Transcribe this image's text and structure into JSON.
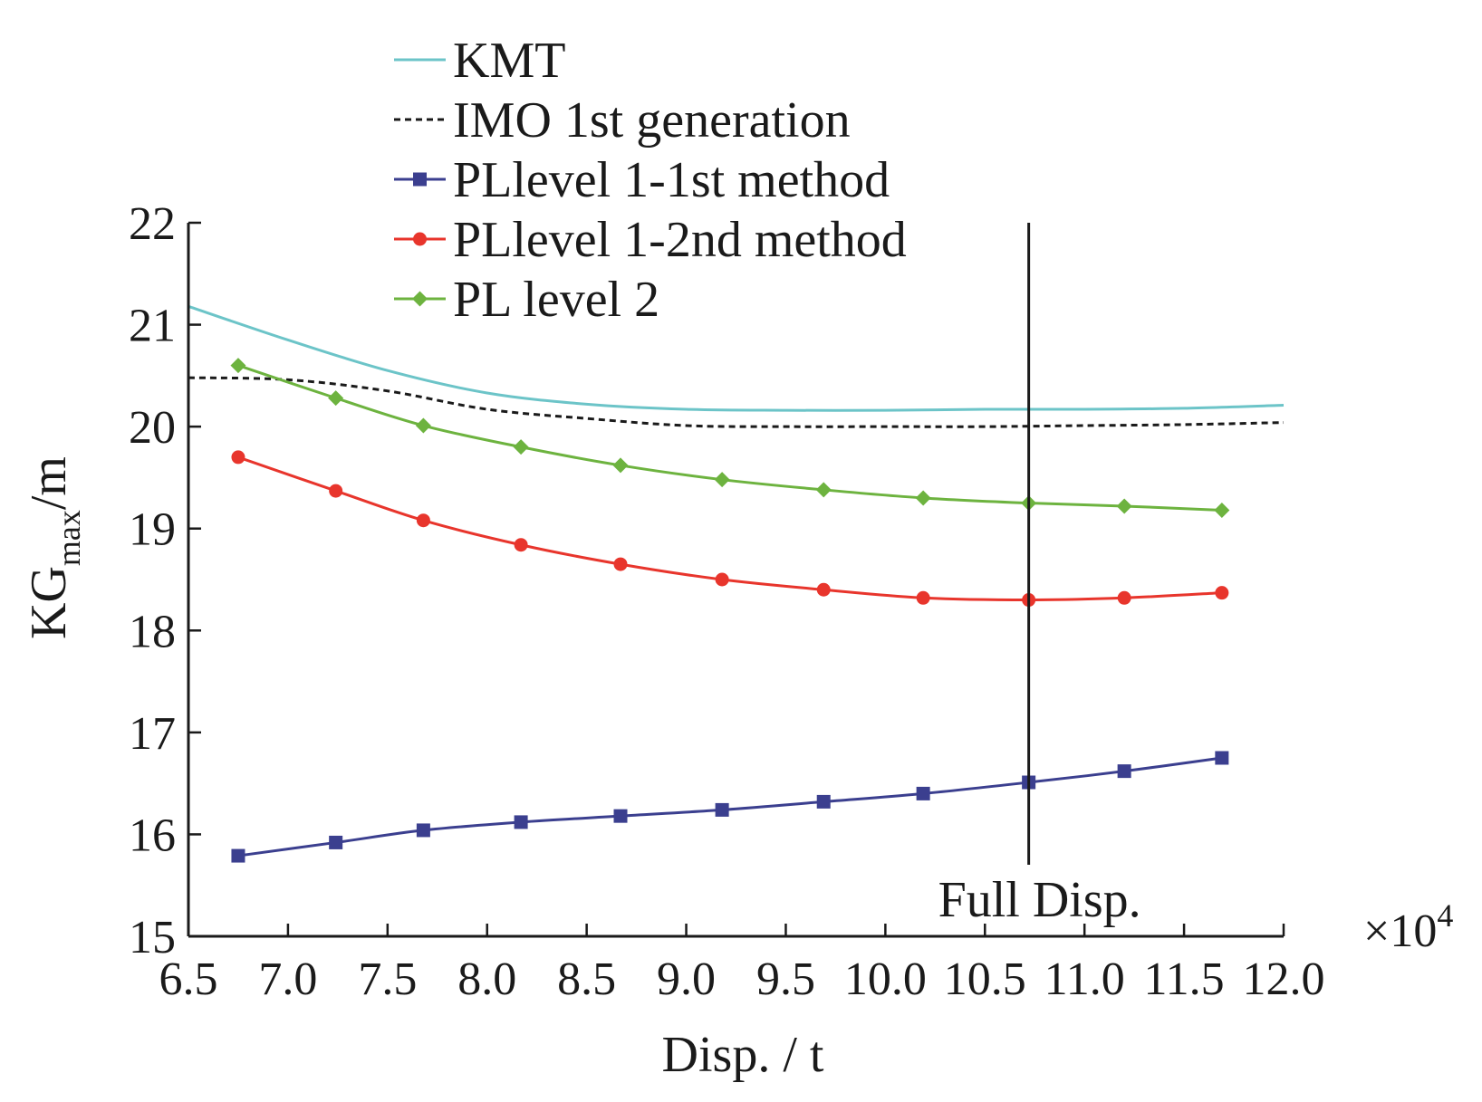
{
  "chart_data": {
    "type": "line",
    "title": "",
    "xlabel": "Disp. / t",
    "ylabel_main": "KG",
    "ylabel_sub": "max",
    "ylabel_unit": "/m",
    "x_multiplier": "×10",
    "x_multiplier_exp": "4",
    "xlim": [
      6.5,
      12.0
    ],
    "ylim": [
      15,
      22
    ],
    "xticks": [
      "6.5",
      "7.0",
      "7.5",
      "8.0",
      "8.5",
      "9.0",
      "9.5",
      "10.0",
      "10.5",
      "11.0",
      "11.5",
      "12.0"
    ],
    "yticks": [
      "15",
      "16",
      "17",
      "18",
      "19",
      "20",
      "21",
      "22"
    ],
    "legend_position": "top-center",
    "annotation": {
      "label": "Full Disp.",
      "x": 10.72
    },
    "series": [
      {
        "name": "KMT",
        "color": "#6cc4c8",
        "style": "solid",
        "marker": "none",
        "x": [
          6.5,
          7.0,
          7.5,
          8.0,
          8.5,
          9.0,
          9.5,
          10.0,
          10.5,
          11.0,
          11.5,
          12.0
        ],
        "y": [
          21.18,
          20.85,
          20.55,
          20.33,
          20.22,
          20.17,
          20.16,
          20.16,
          20.17,
          20.17,
          20.18,
          20.21
        ]
      },
      {
        "name": "IMO 1st generation",
        "color": "#1a1a1a",
        "style": "dashed",
        "marker": "none",
        "x": [
          6.5,
          7.0,
          7.5,
          8.0,
          8.5,
          9.0,
          9.5,
          10.0,
          10.5,
          11.0,
          11.5,
          12.0
        ],
        "y": [
          20.48,
          20.46,
          20.35,
          20.17,
          20.08,
          20.01,
          20.0,
          20.0,
          20.0,
          20.01,
          20.02,
          20.04
        ]
      },
      {
        "name": "PLlevel 1-1st method",
        "color": "#3b3f8f",
        "style": "solid",
        "marker": "square",
        "x": [
          6.75,
          7.24,
          7.68,
          8.17,
          8.67,
          9.18,
          9.69,
          10.19,
          10.72,
          11.2,
          11.69
        ],
        "y": [
          15.79,
          15.92,
          16.04,
          16.12,
          16.18,
          16.24,
          16.32,
          16.4,
          16.51,
          16.62,
          16.75
        ]
      },
      {
        "name": "PLlevel 1-2nd method",
        "color": "#e8352c",
        "style": "solid",
        "marker": "circle",
        "x": [
          6.75,
          7.24,
          7.68,
          8.17,
          8.67,
          9.18,
          9.69,
          10.19,
          10.72,
          11.2,
          11.69
        ],
        "y": [
          19.7,
          19.37,
          19.08,
          18.84,
          18.65,
          18.5,
          18.4,
          18.32,
          18.3,
          18.32,
          18.37
        ]
      },
      {
        "name": "PL level 2",
        "color": "#6db33f",
        "style": "solid",
        "marker": "diamond",
        "x": [
          6.75,
          7.24,
          7.68,
          8.17,
          8.67,
          9.18,
          9.69,
          10.19,
          10.72,
          11.2,
          11.69
        ],
        "y": [
          20.6,
          20.28,
          20.01,
          19.8,
          19.62,
          19.48,
          19.38,
          19.3,
          19.25,
          19.22,
          19.18
        ]
      }
    ]
  }
}
